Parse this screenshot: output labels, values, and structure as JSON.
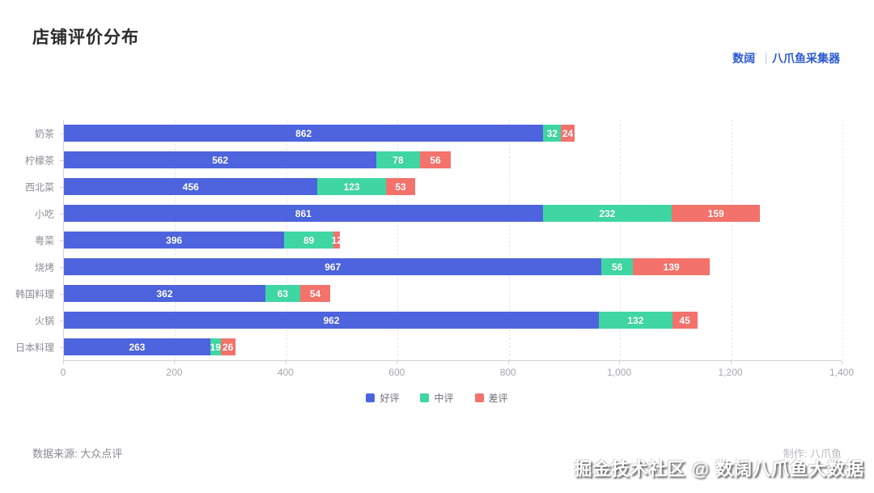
{
  "header": {
    "title": "店铺评价分布",
    "brand_name": "数阔",
    "brand_tm": "'",
    "brand_product": "八爪鱼采集器",
    "brand_color": "#2b59cf"
  },
  "chart_data": {
    "type": "bar",
    "orientation": "horizontal",
    "stacked": true,
    "title": "店铺评价分布",
    "categories": [
      "奶茶",
      "柠檬茶",
      "西北菜",
      "小吃",
      "粤菜",
      "烧烤",
      "韩国料理",
      "火锅",
      "日本料理"
    ],
    "series": [
      {
        "name": "好评",
        "color": "#4d64de",
        "values": [
          862,
          562,
          456,
          861,
          396,
          967,
          362,
          962,
          263
        ]
      },
      {
        "name": "中评",
        "color": "#3fd6a3",
        "values": [
          32,
          78,
          123,
          232,
          89,
          56,
          63,
          132,
          19
        ]
      },
      {
        "name": "差评",
        "color": "#f3726c",
        "values": [
          24,
          56,
          53,
          159,
          12,
          139,
          54,
          45,
          26
        ]
      }
    ],
    "xlim": [
      0,
      1400
    ],
    "x_tick_values": [
      0,
      200,
      400,
      600,
      800,
      1000,
      1200,
      1400
    ],
    "x_tick_labels": [
      "0",
      "200",
      "400",
      "600",
      "800",
      "1,000",
      "1,200",
      "1,400"
    ],
    "grid": "dashed-vertical",
    "legend_position": "bottom",
    "value_labels": "inside-white-bold"
  },
  "footer": {
    "source": "数据来源: 大众点评",
    "maker": "制作: 八爪鱼"
  },
  "watermark": {
    "text": "掘金技术社区 @ 数阔八爪鱼大数据"
  }
}
